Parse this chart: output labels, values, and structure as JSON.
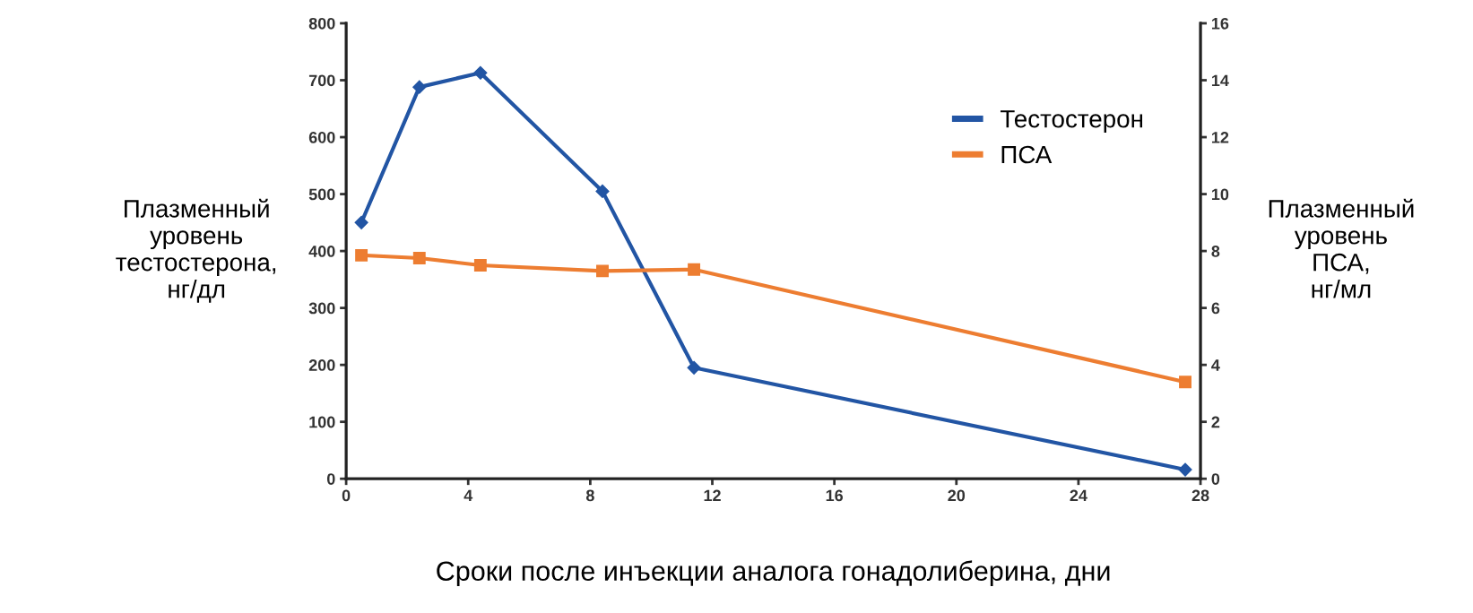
{
  "chart_data": {
    "type": "line",
    "xlabel": "Сроки после инъекции аналога гонадолиберина, дни",
    "ylabel": "Плазменный\nуровень\nтестостерона,\nнг/дл",
    "y2label": "Плазменный\nуровень\nПСА,\nнг/мл",
    "x": [
      0.5,
      2.4,
      4.4,
      8.4,
      11.4,
      27.5
    ],
    "series": [
      {
        "name": "Тестостерон",
        "color": "#2255a4",
        "marker": "diamond",
        "values": [
          450,
          688,
          713,
          505,
          195,
          16
        ]
      },
      {
        "name": "ПСА",
        "color": "#ed7d31",
        "marker": "square",
        "axis": "y2",
        "values": [
          7.85,
          7.75,
          7.5,
          7.3,
          7.35,
          3.4
        ]
      }
    ],
    "xlim": [
      0,
      28
    ],
    "xticks": [
      0,
      4,
      8,
      12,
      16,
      20,
      24,
      28
    ],
    "ylim": [
      0,
      800
    ],
    "yticks": [
      0,
      100,
      200,
      300,
      400,
      500,
      600,
      700,
      800
    ],
    "y2lim": [
      0,
      16
    ],
    "y2ticks": [
      0,
      2,
      4,
      6,
      8,
      10,
      12,
      14,
      16
    ],
    "grid": false,
    "legend": "top right",
    "line_style": "solid"
  }
}
